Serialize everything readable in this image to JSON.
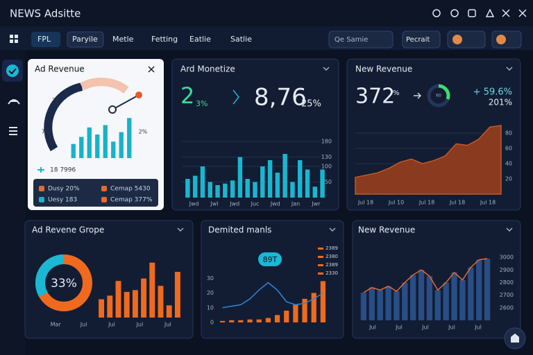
{
  "header": {
    "title": "NEWS Adsitte"
  },
  "nav": {
    "items": [
      "FPL",
      "Paryile",
      "Metle",
      "Fetting",
      "Eatlie",
      "Satlie"
    ],
    "search": "Qe Samie",
    "button": "Pecrait"
  },
  "panels": [
    {
      "title": "Ad Revenue",
      "gauge_labels": [
        "76",
        "7%",
        "2%"
      ],
      "caption": "18 7996",
      "values": [
        6,
        9,
        13,
        10,
        14,
        7,
        11,
        17
      ],
      "ylim": [
        0,
        20
      ],
      "legend": [
        "Dusy 20%",
        "Uesy 183",
        "Cemap 5430",
        "Cemap 377%"
      ]
    },
    {
      "title": "Ard Monetize",
      "stats": [
        "2",
        "3%",
        "8,76",
        "25%"
      ],
      "values": [
        60,
        70,
        100,
        50,
        40,
        45,
        55,
        130,
        60,
        50,
        100,
        120,
        80,
        140,
        50,
        120,
        90,
        35,
        90
      ],
      "ylim": [
        0,
        200
      ],
      "yticks": [
        50,
        100,
        130,
        180
      ],
      "xlabels": [
        "Jwd",
        "Jwl",
        "Jwd",
        "Juc",
        "Jwd",
        "Jan",
        "Jwr"
      ]
    },
    {
      "title": "New Revenue",
      "stats": [
        "372",
        "%",
        "+ 59.6%",
        "201%"
      ],
      "ring_label": "60",
      "values": [
        22,
        25,
        28,
        34,
        42,
        46,
        40,
        44,
        50,
        66,
        64,
        72,
        88,
        90
      ],
      "ylim": [
        0,
        100
      ],
      "yticks": [
        20,
        40,
        60,
        80
      ],
      "xlabels": [
        "Jul 18",
        "Jul 10",
        "Jul 18",
        "Jul 18",
        "Jul 18"
      ]
    },
    {
      "title": "Ad Revene Grope",
      "donut": 33,
      "donut_label": "33%",
      "values": [
        30,
        36,
        60,
        42,
        45,
        64,
        90,
        52,
        20,
        75
      ],
      "ylim": [
        0,
        100
      ],
      "xlabels": [
        "Mar",
        "Jul",
        "Jul",
        "Jul",
        "Jul"
      ]
    },
    {
      "title": "Demited manls",
      "badge": "89T",
      "legend": [
        "2389",
        "2380",
        "2389",
        "2330"
      ],
      "values": [
        1,
        1.5,
        1.5,
        2,
        2,
        3,
        5,
        8,
        12,
        16,
        20,
        28
      ],
      "line": [
        10,
        11,
        12,
        16,
        22,
        27,
        22,
        14,
        12,
        13,
        16,
        20
      ],
      "ylim": [
        0,
        40
      ],
      "yticks": [
        0,
        10,
        20,
        30
      ]
    },
    {
      "title": "New Revenue",
      "values": [
        2720,
        2760,
        2740,
        2770,
        2730,
        2800,
        2860,
        2900,
        2850,
        2740,
        2800,
        2880,
        2820,
        2920,
        2980,
        2990
      ],
      "ylim": [
        2500,
        3050
      ],
      "yticks": [
        2600,
        2700,
        2800,
        2900,
        3000
      ],
      "xlabels": [
        "Jul",
        "Jul",
        "Jul",
        "Jul",
        "Jul"
      ]
    }
  ]
}
